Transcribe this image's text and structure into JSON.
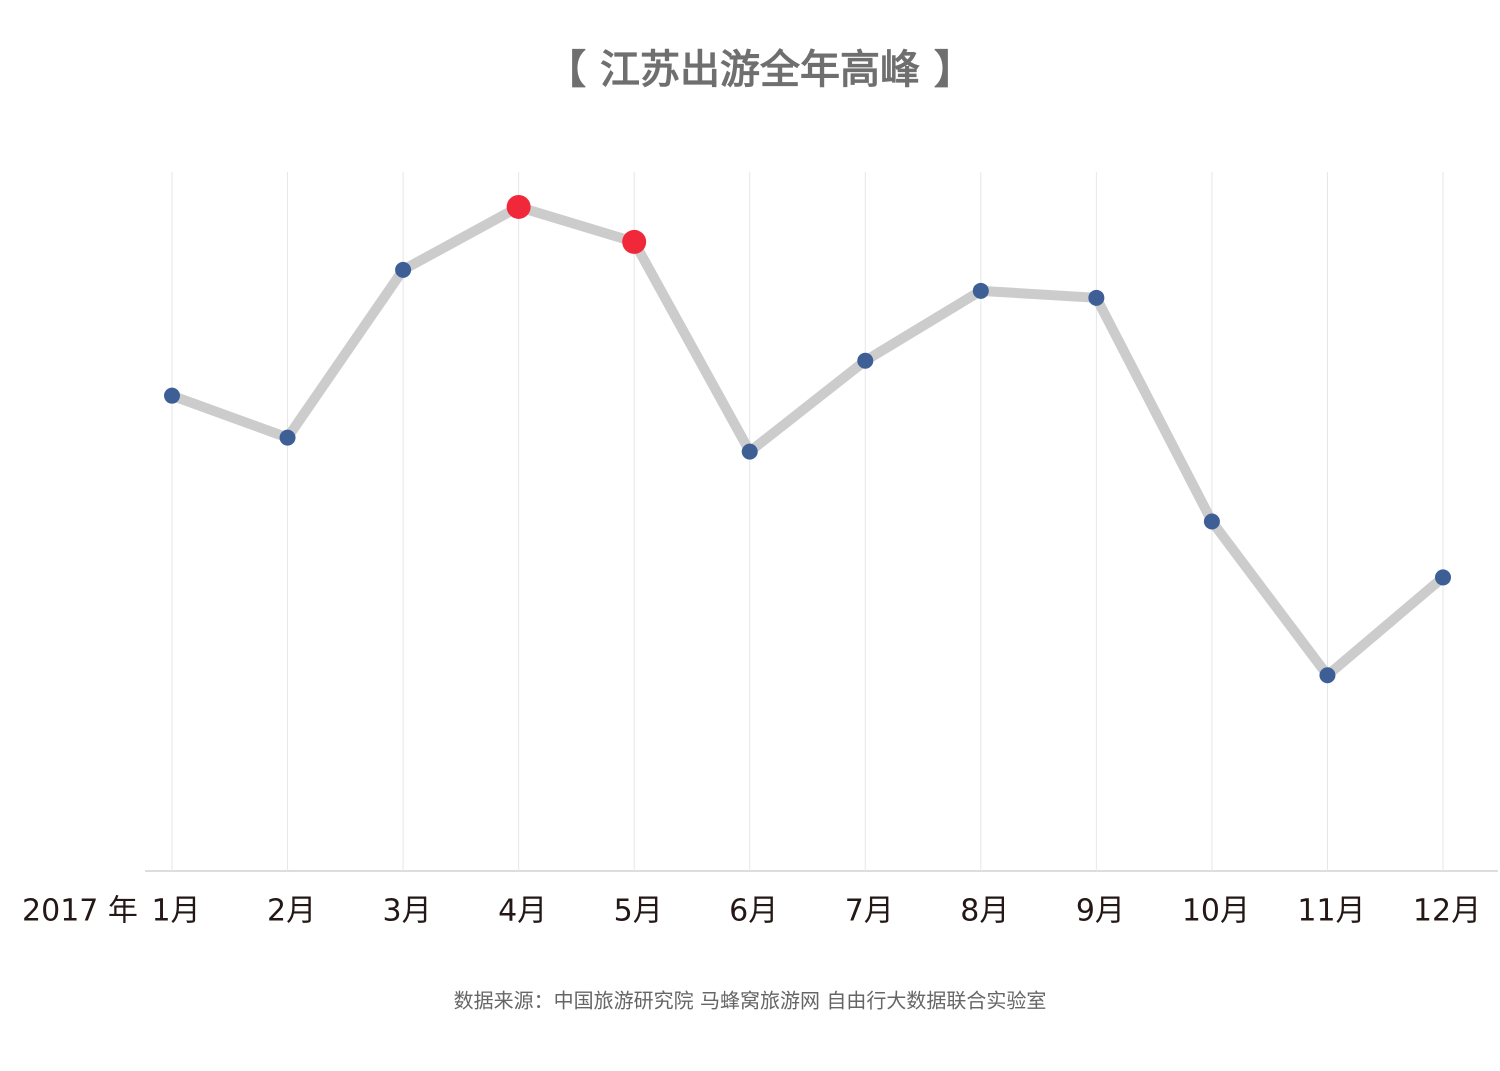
{
  "chart_data": {
    "type": "line",
    "title": "【 江苏出游全年高峰 】",
    "x_label": "2017 年",
    "source": "数据来源：中国旅游研究院 马蜂窝旅游网 自由行大数据联合实验室",
    "categories": [
      "1月",
      "2月",
      "3月",
      "4月",
      "5月",
      "6月",
      "7月",
      "8月",
      "9月",
      "10月",
      "11月",
      "12月"
    ],
    "values": [
      68,
      62,
      86,
      95,
      90,
      60,
      73,
      83,
      82,
      50,
      28,
      42
    ],
    "color": "#cccccc",
    "point_colors": [
      "#3e5f96",
      "#3e5f96",
      "#3e5f96",
      "#f0283a",
      "#f0283a",
      "#3e5f96",
      "#3e5f96",
      "#3e5f96",
      "#3e5f96",
      "#3e5f96",
      "#3e5f96",
      "#3e5f96"
    ],
    "ylim": [
      0,
      100
    ],
    "grid": true
  }
}
